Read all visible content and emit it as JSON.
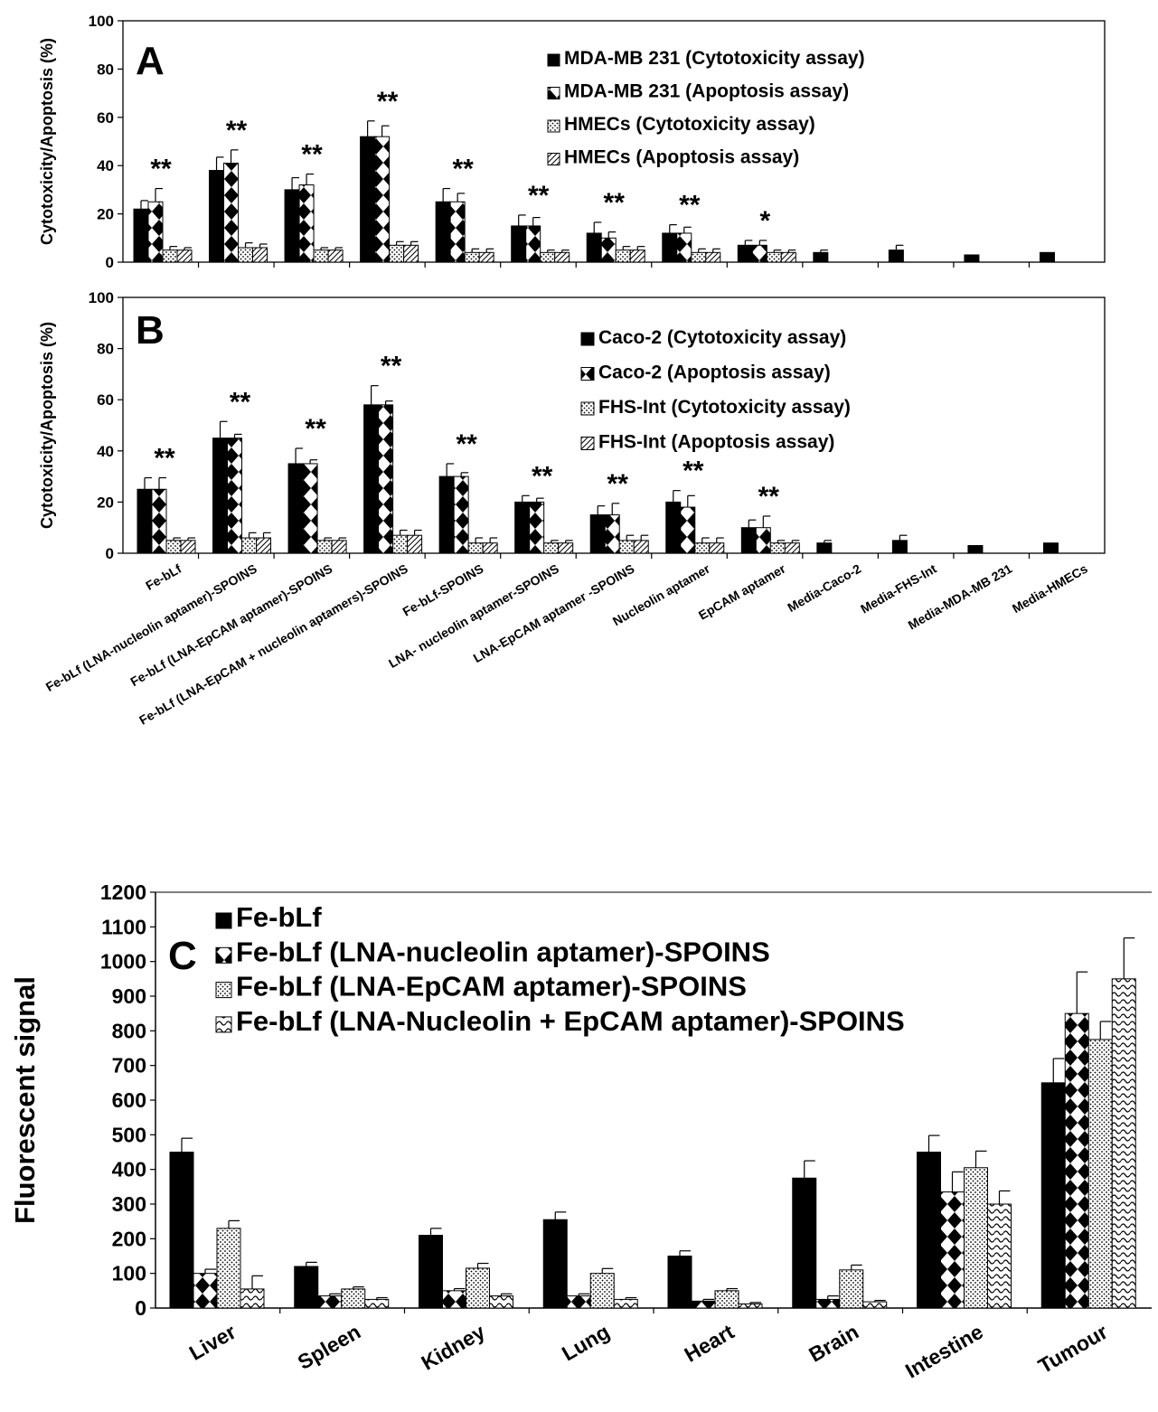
{
  "chart_data": [
    {
      "type": "bar",
      "panel_letter": "A",
      "ylabel": "Cytotoxicity/Apoptosis (%)",
      "ylim": [
        0,
        100
      ],
      "yticks": [
        0,
        20,
        40,
        60,
        80,
        100
      ],
      "legend_position": "top-right",
      "series": [
        {
          "name": "MDA-MB 231  (Cytotoxicity assay)",
          "pattern": "solid",
          "values": [
            22,
            38,
            30,
            52,
            25,
            15,
            12,
            12,
            7,
            4,
            5,
            3,
            4
          ],
          "errors": [
            3.5,
            5.5,
            5,
            6.5,
            5.5,
            4.5,
            4.5,
            3.5,
            2,
            1,
            2,
            0,
            0
          ]
        },
        {
          "name": "MDA-MB 231 (Apoptosis assay)",
          "pattern": "diamond",
          "values": [
            25,
            41,
            32,
            52,
            25,
            15,
            10,
            12,
            7,
            null,
            null,
            null,
            null
          ],
          "errors": [
            5.5,
            5.5,
            4.5,
            4.5,
            3.5,
            3.5,
            2.5,
            2.5,
            2,
            null,
            null,
            null,
            null
          ]
        },
        {
          "name": "HMECs (Cytotoxicity assay)",
          "pattern": "dots",
          "values": [
            5,
            6,
            5,
            7,
            4,
            4,
            5,
            4,
            4,
            null,
            null,
            null,
            null
          ],
          "errors": [
            1.5,
            2,
            1,
            1.5,
            1.5,
            1,
            1.5,
            1.5,
            1,
            null,
            null,
            null,
            null
          ]
        },
        {
          "name": "HMECs (Apoptosis assay)",
          "pattern": "hatch",
          "values": [
            5,
            6,
            5,
            7,
            4,
            4,
            5,
            4,
            4,
            null,
            null,
            null,
            null
          ],
          "errors": [
            1,
            1.5,
            1,
            1.5,
            1.5,
            1,
            1.5,
            1.5,
            1,
            null,
            null,
            null,
            null
          ]
        }
      ],
      "significance": [
        "**",
        "**",
        "**",
        "**",
        "**",
        "**",
        "**",
        "**",
        "*",
        "",
        "",
        "",
        ""
      ]
    },
    {
      "type": "bar",
      "panel_letter": "B",
      "ylabel": "Cytotoxicity/Apoptosis (%)",
      "ylim": [
        0,
        100
      ],
      "yticks": [
        0,
        20,
        40,
        60,
        80,
        100
      ],
      "legend_position": "top-right",
      "categories": [
        "Fe-bLf",
        "Fe-bLf (LNA-nucleolin aptamer)-SPOINS",
        "Fe-bLf (LNA-EpCAM aptamer)-SPOINS",
        "Fe-bLf (LNA-EpCAM + nucleolin aptamers)-SPOINS",
        "Fe-bLf-SPOINS",
        "LNA- nucleolin aptamer-SPOINS",
        "LNA-EpCAM aptamer -SPOINS",
        "Nucleolin aptamer",
        "EpCAM aptamer",
        "Media-Caco-2",
        "Media-FHS-Int",
        "Media-MDA-MB 231",
        "Media-HMECs"
      ],
      "series": [
        {
          "name": "Caco-2  (Cytotoxicity assay)",
          "pattern": "solid",
          "values": [
            25,
            45,
            35,
            58,
            30,
            20,
            15,
            20,
            10,
            4,
            5,
            3,
            4
          ],
          "errors": [
            4.5,
            6.5,
            6,
            7.5,
            5,
            2.5,
            3.5,
            4.5,
            3,
            1,
            2,
            0,
            0
          ]
        },
        {
          "name": "Caco-2 (Apoptosis assay)",
          "pattern": "diamond",
          "values": [
            25,
            45,
            35,
            58,
            30,
            20,
            15,
            18,
            10,
            null,
            null,
            null,
            null
          ],
          "errors": [
            4.5,
            1.5,
            1.5,
            1.5,
            1.5,
            1.5,
            4.5,
            4.5,
            4.5,
            null,
            null,
            null,
            null
          ]
        },
        {
          "name": "FHS-Int (Cytotoxicity assay)",
          "pattern": "dots",
          "values": [
            5,
            6,
            5,
            7,
            4,
            4,
            5,
            4,
            4,
            null,
            null,
            null,
            null
          ],
          "errors": [
            1,
            2,
            1,
            2,
            2,
            1,
            2,
            2,
            1,
            null,
            null,
            null,
            null
          ]
        },
        {
          "name": "FHS-Int (Apoptosis assay)",
          "pattern": "hatch",
          "values": [
            5,
            6,
            5,
            7,
            4,
            4,
            5,
            4,
            4,
            null,
            null,
            null,
            null
          ],
          "errors": [
            1,
            2,
            1,
            2,
            2,
            1,
            2,
            2,
            1,
            null,
            null,
            null,
            null
          ]
        }
      ],
      "significance": [
        "**",
        "**",
        "**",
        "**",
        "**",
        "**",
        "**",
        "**",
        "**",
        "",
        "",
        "",
        ""
      ]
    },
    {
      "type": "bar",
      "panel_letter": "C",
      "ylabel": "Fluorescent signal",
      "ylim": [
        0,
        1200
      ],
      "yticks": [
        0,
        100,
        200,
        300,
        400,
        500,
        600,
        700,
        800,
        900,
        1000,
        1100,
        1200
      ],
      "legend_position": "top-left",
      "categories": [
        "Liver",
        "Spleen",
        "Kidney",
        "Lung",
        "Heart",
        "Brain",
        "Intestine",
        "Tumour"
      ],
      "series": [
        {
          "name": "Fe-bLf",
          "pattern": "solid",
          "values": [
            450,
            120,
            210,
            255,
            150,
            375,
            450,
            650
          ],
          "errors": [
            40,
            12,
            20,
            22,
            15,
            50,
            48,
            70
          ]
        },
        {
          "name": "Fe-bLf (LNA-nucleolin aptamer)-SPOINS",
          "pattern": "diamond",
          "values": [
            100,
            35,
            50,
            35,
            20,
            25,
            335,
            850
          ],
          "errors": [
            12,
            6,
            6,
            6,
            5,
            10,
            58,
            120
          ]
        },
        {
          "name": "Fe-bLf (LNA-EpCAM aptamer)-SPOINS",
          "pattern": "dots",
          "values": [
            230,
            55,
            115,
            100,
            50,
            110,
            405,
            775
          ],
          "errors": [
            22,
            6,
            14,
            14,
            6,
            14,
            48,
            52
          ]
        },
        {
          "name": "Fe-bLf (LNA-Nucleolin + EpCAM aptamer)-SPOINS",
          "pattern": "wave",
          "values": [
            55,
            25,
            35,
            25,
            12,
            18,
            300,
            950
          ],
          "errors": [
            38,
            5,
            6,
            5,
            4,
            4,
            38,
            118
          ]
        }
      ]
    }
  ]
}
